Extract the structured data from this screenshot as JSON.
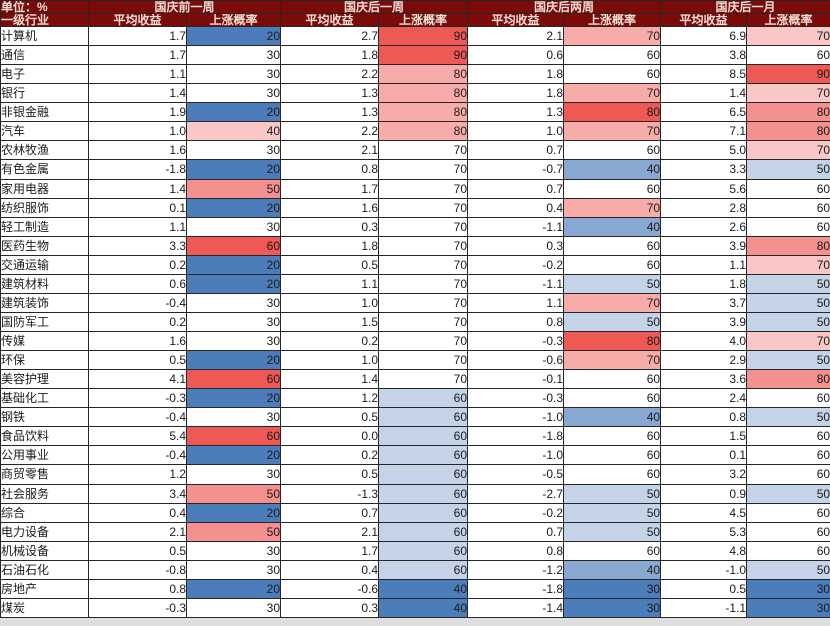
{
  "colors": {
    "header_bg": "#7a0b08",
    "header_text": "#f3ddd6",
    "grid": "#262626",
    "scale_blue": "#4d7cba",
    "scale_mid": "#ffffff",
    "scale_red": "#ee5855",
    "cell_text": "#1b1b1b"
  },
  "chart_data": {
    "type": "table",
    "title": "单位：%",
    "row_header": "一级行业",
    "column_groups": [
      "国庆前一周",
      "国庆后一周",
      "国庆后两周",
      "国庆后一月"
    ],
    "sub_columns": [
      "平均收益",
      "上涨概率"
    ],
    "value_note": "columns order: 前一周平均收益, 前一周上涨概率, 后一周平均收益, 后一周上涨概率, 后两周平均收益, 后两周上涨概率, 后一月平均收益, 后一月上涨概率",
    "rows": [
      {
        "industry": "计算机",
        "values": [
          1.7,
          20,
          2.7,
          90,
          2.1,
          70,
          6.9,
          70
        ]
      },
      {
        "industry": "通信",
        "values": [
          1.7,
          30,
          1.8,
          90,
          0.6,
          60,
          3.8,
          60
        ]
      },
      {
        "industry": "电子",
        "values": [
          1.1,
          30,
          2.2,
          80,
          1.8,
          60,
          8.5,
          90
        ]
      },
      {
        "industry": "银行",
        "values": [
          1.4,
          30,
          1.3,
          80,
          1.8,
          70,
          1.4,
          70
        ]
      },
      {
        "industry": "非银金融",
        "values": [
          1.9,
          20,
          1.3,
          80,
          1.3,
          80,
          6.5,
          80
        ]
      },
      {
        "industry": "汽车",
        "values": [
          1.0,
          40,
          2.2,
          80,
          1.0,
          70,
          7.1,
          80
        ]
      },
      {
        "industry": "农林牧渔",
        "values": [
          1.6,
          30,
          2.1,
          70,
          0.7,
          60,
          5.0,
          70
        ]
      },
      {
        "industry": "有色金属",
        "values": [
          -1.8,
          20,
          0.8,
          70,
          -0.7,
          40,
          3.3,
          50
        ]
      },
      {
        "industry": "家用电器",
        "values": [
          1.4,
          50,
          1.7,
          70,
          0.7,
          60,
          5.6,
          60
        ]
      },
      {
        "industry": "纺织服饰",
        "values": [
          0.1,
          20,
          1.6,
          70,
          0.4,
          70,
          2.8,
          60
        ]
      },
      {
        "industry": "轻工制造",
        "values": [
          1.1,
          30,
          0.3,
          70,
          -1.1,
          40,
          2.6,
          60
        ]
      },
      {
        "industry": "医药生物",
        "values": [
          3.3,
          60,
          1.8,
          70,
          0.3,
          60,
          3.9,
          80
        ]
      },
      {
        "industry": "交通运输",
        "values": [
          0.2,
          20,
          0.5,
          70,
          -0.2,
          60,
          1.1,
          70
        ]
      },
      {
        "industry": "建筑材料",
        "values": [
          0.6,
          20,
          1.1,
          70,
          -1.1,
          50,
          1.8,
          50
        ]
      },
      {
        "industry": "建筑装饰",
        "values": [
          -0.4,
          30,
          1.0,
          70,
          1.1,
          70,
          3.7,
          50
        ]
      },
      {
        "industry": "国防军工",
        "values": [
          0.2,
          30,
          1.5,
          70,
          0.8,
          50,
          3.9,
          50
        ]
      },
      {
        "industry": "传媒",
        "values": [
          1.6,
          30,
          0.2,
          70,
          -0.3,
          80,
          4.0,
          70
        ]
      },
      {
        "industry": "环保",
        "values": [
          0.5,
          20,
          1.0,
          70,
          -0.6,
          70,
          2.9,
          50
        ]
      },
      {
        "industry": "美容护理",
        "values": [
          4.1,
          60,
          1.4,
          70,
          -0.1,
          60,
          3.6,
          80
        ]
      },
      {
        "industry": "基础化工",
        "values": [
          -0.3,
          20,
          1.2,
          60,
          -0.3,
          60,
          2.4,
          60
        ]
      },
      {
        "industry": "钢铁",
        "values": [
          -0.4,
          30,
          0.5,
          60,
          -1.0,
          40,
          0.8,
          50
        ]
      },
      {
        "industry": "食品饮料",
        "values": [
          5.4,
          60,
          0.0,
          60,
          -1.8,
          60,
          1.5,
          60
        ]
      },
      {
        "industry": "公用事业",
        "values": [
          -0.4,
          20,
          0.2,
          60,
          -1.0,
          60,
          0.1,
          60
        ]
      },
      {
        "industry": "商贸零售",
        "values": [
          1.2,
          30,
          0.5,
          60,
          -0.5,
          60,
          3.2,
          60
        ]
      },
      {
        "industry": "社会服务",
        "values": [
          3.4,
          50,
          -1.3,
          60,
          -2.7,
          50,
          0.9,
          50
        ]
      },
      {
        "industry": "综合",
        "values": [
          0.4,
          20,
          0.7,
          60,
          -0.2,
          50,
          4.5,
          60
        ]
      },
      {
        "industry": "电力设备",
        "values": [
          2.1,
          50,
          2.1,
          60,
          0.7,
          50,
          5.3,
          60
        ]
      },
      {
        "industry": "机械设备",
        "values": [
          0.5,
          30,
          1.7,
          60,
          0.8,
          60,
          4.8,
          60
        ]
      },
      {
        "industry": "石油石化",
        "values": [
          -0.8,
          30,
          0.4,
          60,
          -1.2,
          40,
          -1.0,
          50
        ]
      },
      {
        "industry": "房地产",
        "values": [
          0.8,
          20,
          -0.6,
          40,
          -1.8,
          30,
          0.5,
          30
        ]
      },
      {
        "industry": "煤炭",
        "values": [
          -0.3,
          30,
          0.3,
          40,
          -1.4,
          30,
          -1.1,
          30
        ]
      }
    ]
  }
}
